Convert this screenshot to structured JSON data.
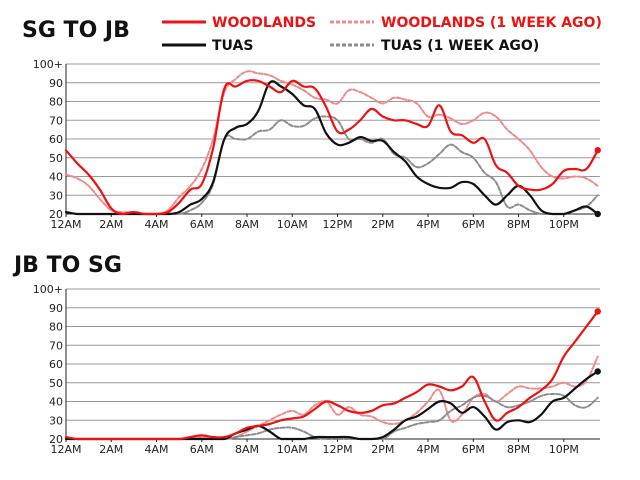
{
  "legend": {
    "woodlands": "WOODLANDS",
    "woodlands_prev": "WOODLANDS (1 WEEK AGO)",
    "tuas": "TUAS",
    "tuas_prev": "TUAS (1 WEEK AGO)"
  },
  "colors": {
    "woodlands": "#ee1111",
    "woodlands_prev": "#f08a8a",
    "tuas": "#111111",
    "tuas_prev": "#8c8c8c"
  },
  "chart_data": [
    {
      "type": "line",
      "title": "SG TO JB",
      "xlabel": "",
      "ylabel": "",
      "xlim": [
        0,
        23.6
      ],
      "ylim": [
        20,
        100
      ],
      "x_ticks": [
        0,
        2,
        4,
        6,
        8,
        10,
        12,
        14,
        16,
        18,
        20,
        22
      ],
      "x_tick_labels": [
        "12AM",
        "2AM",
        "4AM",
        "6AM",
        "8AM",
        "10AM",
        "12PM",
        "2PM",
        "4PM",
        "6PM",
        "8PM",
        "10PM"
      ],
      "y_ticks": [
        20,
        30,
        40,
        50,
        60,
        70,
        80,
        90,
        100
      ],
      "y_tick_labels": [
        "20",
        "30",
        "40",
        "50",
        "60",
        "70",
        "80",
        "90",
        "100+"
      ],
      "series": [
        {
          "key": "woodlands_prev",
          "name": "WOODLANDS (1 WEEK AGO)",
          "style": "dashed",
          "x": [
            0,
            0.5,
            1,
            1.5,
            2,
            2.5,
            3,
            3.5,
            4,
            4.5,
            5,
            5.5,
            6,
            6.5,
            7,
            7.5,
            8,
            8.5,
            9,
            9.5,
            10,
            10.5,
            11,
            11.5,
            12,
            12.5,
            13,
            13.5,
            14,
            14.5,
            15,
            15.5,
            16,
            16.5,
            17,
            17.5,
            18,
            18.5,
            19,
            19.5,
            20,
            20.5,
            21,
            21.5,
            22,
            22.5,
            23,
            23.5
          ],
          "values": [
            41,
            39,
            35,
            28,
            22,
            21,
            21,
            20,
            20,
            22,
            29,
            35,
            44,
            60,
            85,
            92,
            96,
            95,
            94,
            91,
            89,
            86,
            82,
            81,
            79,
            86,
            85,
            82,
            79,
            82,
            81,
            79,
            72,
            73,
            71,
            68,
            70,
            74,
            72,
            65,
            60,
            54,
            45,
            40,
            39,
            40,
            39,
            35
          ]
        },
        {
          "key": "woodlands",
          "name": "WOODLANDS",
          "style": "solid",
          "x": [
            0,
            0.5,
            1,
            1.5,
            2,
            2.5,
            3,
            3.5,
            4,
            4.5,
            5,
            5.5,
            6,
            6.5,
            7,
            7.5,
            8,
            8.5,
            9,
            9.5,
            10,
            10.5,
            11,
            11.5,
            12,
            12.5,
            13,
            13.5,
            14,
            14.5,
            15,
            15.5,
            16,
            16.5,
            17,
            17.5,
            18,
            18.5,
            19,
            19.5,
            20,
            20.5,
            21,
            21.5,
            22,
            22.5,
            23,
            23.5
          ],
          "values": [
            54,
            47,
            41,
            33,
            23,
            20,
            21,
            20,
            20,
            21,
            26,
            33,
            36,
            55,
            87,
            88,
            91,
            91,
            88,
            85,
            91,
            88,
            87,
            77,
            64,
            65,
            70,
            76,
            72,
            70,
            70,
            68,
            67,
            78,
            64,
            62,
            58,
            60,
            46,
            42,
            35,
            33,
            33,
            36,
            43,
            44,
            44,
            54
          ]
        },
        {
          "key": "tuas_prev",
          "name": "TUAS (1 WEEK AGO)",
          "style": "dashed",
          "x": [
            0,
            0.5,
            1,
            1.5,
            2,
            2.5,
            3,
            3.5,
            4,
            4.5,
            5,
            5.5,
            6,
            6.5,
            7,
            7.5,
            8,
            8.5,
            9,
            9.5,
            10,
            10.5,
            11,
            11.5,
            12,
            12.5,
            13,
            13.5,
            14,
            14.5,
            15,
            15.5,
            16,
            16.5,
            17,
            17.5,
            18,
            18.5,
            19,
            19.5,
            20,
            20.5,
            21,
            21.5,
            22,
            22.5,
            23,
            23.5
          ],
          "values": [
            21,
            20,
            20,
            20,
            20,
            20,
            20,
            20,
            20,
            20,
            20,
            22,
            26,
            36,
            60,
            60,
            60,
            64,
            65,
            70,
            67,
            67,
            71,
            72,
            70,
            60,
            60,
            58,
            60,
            52,
            50,
            45,
            47,
            52,
            57,
            53,
            50,
            42,
            37,
            24,
            25,
            22,
            20,
            20,
            20,
            22,
            24,
            30
          ]
        },
        {
          "key": "tuas",
          "name": "TUAS",
          "style": "solid",
          "x": [
            0,
            0.5,
            1,
            1.5,
            2,
            2.5,
            3,
            3.5,
            4,
            4.5,
            5,
            5.5,
            6,
            6.5,
            7,
            7.5,
            8,
            8.5,
            9,
            9.5,
            10,
            10.5,
            11,
            11.5,
            12,
            12.5,
            13,
            13.5,
            14,
            14.5,
            15,
            15.5,
            16,
            16.5,
            17,
            17.5,
            18,
            18.5,
            19,
            19.5,
            20,
            20.5,
            21,
            21.5,
            22,
            22.5,
            23,
            23.5
          ],
          "values": [
            21,
            20,
            20,
            20,
            20,
            20,
            20,
            20,
            20,
            20,
            21,
            25,
            28,
            37,
            60,
            66,
            68,
            75,
            90,
            88,
            84,
            78,
            76,
            63,
            57,
            58,
            61,
            59,
            59,
            53,
            48,
            40,
            36,
            34,
            34,
            37,
            36,
            30,
            25,
            30,
            35,
            30,
            22,
            20,
            20,
            22,
            24,
            20
          ]
        }
      ]
    },
    {
      "type": "line",
      "title": "JB TO SG",
      "xlabel": "",
      "ylabel": "",
      "xlim": [
        0,
        23.6
      ],
      "ylim": [
        20,
        100
      ],
      "x_ticks": [
        0,
        2,
        4,
        6,
        8,
        10,
        12,
        14,
        16,
        18,
        20,
        22
      ],
      "x_tick_labels": [
        "12AM",
        "2AM",
        "4AM",
        "6AM",
        "8AM",
        "10AM",
        "12PM",
        "2PM",
        "4PM",
        "6PM",
        "8PM",
        "10PM"
      ],
      "y_ticks": [
        20,
        30,
        40,
        50,
        60,
        70,
        80,
        90,
        100
      ],
      "y_tick_labels": [
        "20",
        "30",
        "40",
        "50",
        "60",
        "70",
        "80",
        "90",
        "100+"
      ],
      "series": [
        {
          "key": "woodlands_prev",
          "name": "WOODLANDS (1 WEEK AGO)",
          "style": "dashed",
          "x": [
            0,
            0.5,
            1,
            1.5,
            2,
            2.5,
            3,
            3.5,
            4,
            4.5,
            5,
            5.5,
            6,
            6.5,
            7,
            7.5,
            8,
            8.5,
            9,
            9.5,
            10,
            10.5,
            11,
            11.5,
            12,
            12.5,
            13,
            13.5,
            14,
            14.5,
            15,
            15.5,
            16,
            16.5,
            17,
            17.5,
            18,
            18.5,
            19,
            19.5,
            20,
            20.5,
            21,
            21.5,
            22,
            22.5,
            23,
            23.5
          ],
          "values": [
            20,
            20,
            20,
            20,
            20,
            20,
            20,
            20,
            20,
            20,
            20,
            20,
            21,
            21,
            20,
            21,
            24,
            27,
            30,
            33,
            35,
            33,
            38,
            40,
            33,
            37,
            33,
            32,
            29,
            28,
            30,
            34,
            40,
            46,
            30,
            33,
            42,
            44,
            40,
            44,
            48,
            47,
            47,
            48,
            50,
            48,
            51,
            64
          ]
        },
        {
          "key": "woodlands",
          "name": "WOODLANDS",
          "style": "solid",
          "x": [
            0,
            0.5,
            1,
            1.5,
            2,
            2.5,
            3,
            3.5,
            4,
            4.5,
            5,
            5.5,
            6,
            6.5,
            7,
            7.5,
            8,
            8.5,
            9,
            9.5,
            10,
            10.5,
            11,
            11.5,
            12,
            12.5,
            13,
            13.5,
            14,
            14.5,
            15,
            15.5,
            16,
            16.5,
            17,
            17.5,
            18,
            18.5,
            19,
            19.5,
            20,
            20.5,
            21,
            21.5,
            22,
            22.5,
            23,
            23.5
          ],
          "values": [
            21,
            20,
            20,
            20,
            20,
            20,
            20,
            20,
            20,
            20,
            20,
            21,
            22,
            21,
            21,
            23,
            26,
            27,
            28,
            30,
            31,
            32,
            36,
            40,
            38,
            35,
            34,
            35,
            38,
            39,
            42,
            45,
            49,
            48,
            46,
            48,
            53,
            40,
            30,
            34,
            37,
            42,
            46,
            52,
            64,
            72,
            80,
            88
          ]
        },
        {
          "key": "tuas_prev",
          "name": "TUAS (1 WEEK AGO)",
          "style": "dashed",
          "x": [
            0,
            0.5,
            1,
            1.5,
            2,
            2.5,
            3,
            3.5,
            4,
            4.5,
            5,
            5.5,
            6,
            6.5,
            7,
            7.5,
            8,
            8.5,
            9,
            9.5,
            10,
            10.5,
            11,
            11.5,
            12,
            12.5,
            13,
            13.5,
            14,
            14.5,
            15,
            15.5,
            16,
            16.5,
            17,
            17.5,
            18,
            18.5,
            19,
            19.5,
            20,
            20.5,
            21,
            21.5,
            22,
            22.5,
            23,
            23.5
          ],
          "values": [
            20,
            20,
            20,
            20,
            20,
            20,
            20,
            20,
            20,
            20,
            20,
            20,
            20,
            20,
            20,
            21,
            22,
            23,
            25,
            26,
            26,
            24,
            21,
            20,
            20,
            20,
            20,
            20,
            20,
            24,
            26,
            28,
            29,
            30,
            35,
            38,
            42,
            43,
            40,
            37,
            38,
            40,
            43,
            44,
            43,
            38,
            37,
            42
          ]
        },
        {
          "key": "tuas",
          "name": "TUAS",
          "style": "solid",
          "x": [
            0,
            0.5,
            1,
            1.5,
            2,
            2.5,
            3,
            3.5,
            4,
            4.5,
            5,
            5.5,
            6,
            6.5,
            7,
            7.5,
            8,
            8.5,
            9,
            9.5,
            10,
            10.5,
            11,
            11.5,
            12,
            12.5,
            13,
            13.5,
            14,
            14.5,
            15,
            15.5,
            16,
            16.5,
            17,
            17.5,
            18,
            18.5,
            19,
            19.5,
            20,
            20.5,
            21,
            21.5,
            22,
            22.5,
            23,
            23.5
          ],
          "values": [
            20,
            20,
            20,
            20,
            20,
            20,
            20,
            20,
            20,
            20,
            20,
            20,
            20,
            20,
            20,
            23,
            25,
            27,
            24,
            20,
            20,
            20,
            21,
            21,
            21,
            21,
            20,
            20,
            21,
            25,
            30,
            32,
            36,
            40,
            39,
            34,
            37,
            32,
            25,
            29,
            30,
            29,
            33,
            40,
            42,
            47,
            52,
            56
          ]
        }
      ]
    }
  ]
}
